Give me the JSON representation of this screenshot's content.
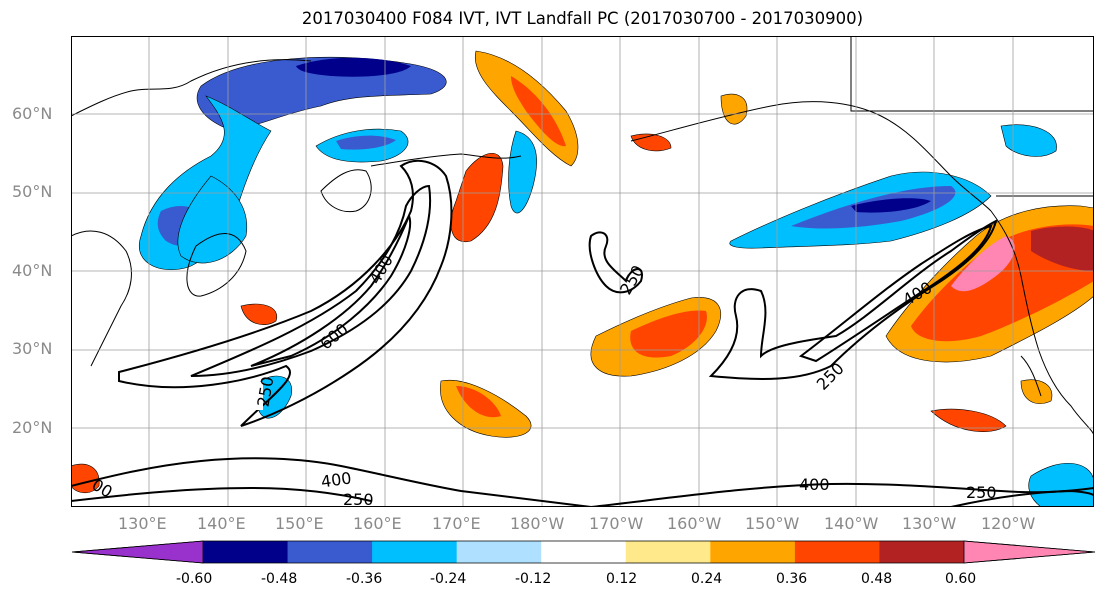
{
  "title": "2017030400 F084 IVT, IVT Landfall PC (2017030700 - 2017030900)",
  "lat_labels": [
    "60°N",
    "50°N",
    "40°N",
    "30°N",
    "20°N"
  ],
  "lon_labels": [
    "130°E",
    "140°E",
    "150°E",
    "160°E",
    "170°E",
    "180°W",
    "170°W",
    "160°W",
    "150°W",
    "140°W",
    "130°W",
    "120°W"
  ],
  "colorbar": {
    "colors": [
      "#9932cc",
      "#00008b",
      "#3a5bd0",
      "#00bfff",
      "#b0e0ff",
      "#ffffff",
      "#ffe98a",
      "#ffa500",
      "#ff4500",
      "#b22222",
      "#ff85b3"
    ],
    "tick_labels": [
      "-0.60",
      "-0.48",
      "-0.36",
      "-0.24",
      "-0.12",
      "0.12",
      "0.24",
      "0.36",
      "0.48",
      "0.60"
    ]
  },
  "contour_labels": [
    "250",
    "400",
    "600",
    "400",
    "250",
    "250",
    "400",
    "250",
    "400",
    "250",
    "400",
    "250",
    "400",
    "00"
  ]
}
